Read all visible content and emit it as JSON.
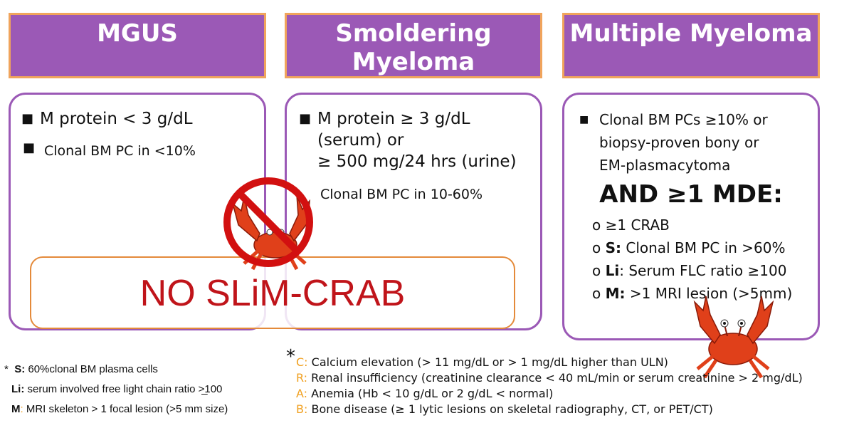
{
  "headers": {
    "mgus": "MGUS",
    "smoldering_line1": "Smoldering",
    "smoldering_line2": "Myeloma",
    "mm": "Multiple Myeloma"
  },
  "mgus_box": {
    "b1": "M protein < 3 g/dL",
    "b2": "Clonal BM PC in <10%"
  },
  "smm_box": {
    "b1_l1": "M protein ≥ 3 g/dL",
    "b1_l2": "(serum) or",
    "b1_l3": "≥ 500 mg/24 hrs (urine)",
    "b2": "Clonal BM PC in 10-60%"
  },
  "no_slim": "NO SLiM-CRAB",
  "mm_box": {
    "b1_l1": "Clonal BM PCs ≥10% or",
    "b1_l2": "biopsy-proven bony or",
    "b1_l3": "EM-plasmacytoma",
    "and": "AND ≥1 MDE:",
    "items": [
      {
        "bullet": "o",
        "key": "",
        "text": "≥1 CRAB"
      },
      {
        "bullet": "o",
        "key": "S:",
        "text": " Clonal BM PC in >60%"
      },
      {
        "bullet": "o",
        "key": "Li",
        "text": ": Serum FLC ratio ≥100"
      },
      {
        "bullet": "o",
        "key": "M:",
        "text": " >1 MRI lesion (>5mm)"
      }
    ]
  },
  "footnote_left": {
    "star": "*",
    "s_key": "S:",
    "s_text": " 60%clonal BM plasma cells",
    "li_key": "Li:",
    "li_text": " serum involved free light chain ratio >̲100",
    "m_key": "M",
    "m_colon": ":",
    "m_text": " MRI skeleton > 1 focal lesion (>5 mm size)"
  },
  "footnote_right": {
    "star": "*",
    "c_key": "C:",
    "c_text": " Calcium elevation (> 11 mg/dL or > 1 mg/dL higher than ULN)",
    "r_key": "R:",
    "r_text": " Renal insufficiency (creatinine clearance < 40 mL/min or serum creatinine > 2 mg/dL)",
    "a_key": "A:",
    "a_text": " Anemia (Hb < 10 g/dL or 2 g/dL < normal)",
    "b_key": "B:",
    "b_text": " Bone disease (≥ 1 lytic lesions on skeletal radiography, CT, or PET/CT)"
  },
  "colors": {
    "header_fill": "#9b59b6",
    "header_border": "#f0a45c",
    "box_border": "#9b59b6",
    "no_text": "#c0141a",
    "crab": "#e0401a",
    "prohibit": "#d21010",
    "letter_accent": "#f0a020"
  },
  "icons": [
    "no-crab-icon",
    "crab-icon"
  ]
}
